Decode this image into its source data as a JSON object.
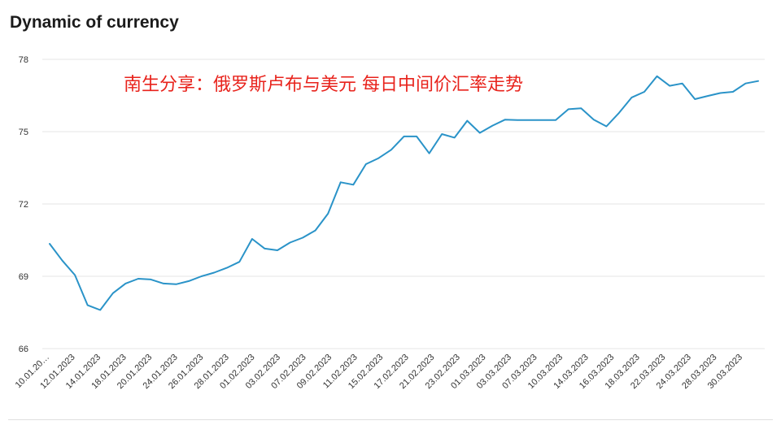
{
  "chart_data": {
    "type": "line",
    "title": "Dynamic of currency",
    "annotation": "南生分享：俄罗斯卢布与美元 每日中间价汇率走势",
    "xlabel": "",
    "ylabel": "",
    "ylim": [
      66,
      78
    ],
    "yticks": [
      66,
      69,
      72,
      75,
      78
    ],
    "grid": true,
    "x_tick_labels": [
      "10.01.20…",
      "12.01.2023",
      "14.01.2023",
      "18.01.2023",
      "20.01.2023",
      "24.01.2023",
      "26.01.2023",
      "28.01.2023",
      "01.02.2023",
      "03.02.2023",
      "07.02.2023",
      "09.02.2023",
      "11.02.2023",
      "15.02.2023",
      "17.02.2023",
      "21.02.2023",
      "23.02.2023",
      "01.03.2023",
      "03.03.2023",
      "07.03.2023",
      "10.03.2023",
      "14.03.2023",
      "16.03.2023",
      "18.03.2023",
      "22.03.2023",
      "24.03.2023",
      "28.03.2023",
      "30.03.2023"
    ],
    "series": [
      {
        "color": "#2a93c8",
        "values": [
          70.35,
          69.65,
          69.05,
          67.8,
          67.6,
          68.3,
          68.7,
          68.9,
          68.87,
          68.7,
          68.67,
          68.8,
          69.0,
          69.15,
          69.35,
          69.6,
          70.55,
          70.15,
          70.08,
          70.4,
          70.6,
          70.9,
          71.6,
          72.9,
          72.8,
          73.65,
          73.9,
          74.25,
          74.8,
          74.8,
          74.1,
          74.9,
          74.75,
          75.45,
          74.95,
          75.25,
          75.5,
          75.48,
          75.48,
          75.48,
          75.48,
          75.93,
          75.97,
          75.5,
          75.22,
          75.78,
          76.42,
          76.65,
          77.3,
          76.9,
          77.0,
          76.35,
          76.48,
          76.6,
          76.65,
          77.0,
          77.1
        ]
      }
    ]
  }
}
